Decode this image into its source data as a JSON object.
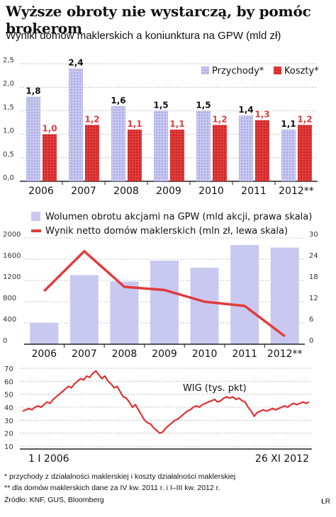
{
  "title": "Wyższe obroty nie wystarczą, by pomóc brokerom",
  "subtitle": "Wyniki domów maklerskich a koniunktura na GPW (mld zł)",
  "colors": {
    "lavender": "#c8c8f0",
    "lavender_dark": "#a6a6e4",
    "red": "#e03c3c",
    "red_dark": "#c81e1e",
    "wig_line": "#e03030",
    "grid": "#b0b0b0"
  },
  "chart_data": [
    {
      "type": "bar",
      "categories": [
        "2006",
        "2007",
        "2008",
        "2009",
        "2010",
        "2011",
        "2012**"
      ],
      "series": [
        {
          "name": "Przychody*",
          "values": [
            1.8,
            2.4,
            1.6,
            1.5,
            1.5,
            1.4,
            1.1
          ],
          "labels": [
            "1,8",
            "2,4",
            "1,6",
            "1,5",
            "1,5",
            "1,4",
            "1,1"
          ]
        },
        {
          "name": "Koszty*",
          "values": [
            1.0,
            1.2,
            1.1,
            1.1,
            1.2,
            1.3,
            1.2
          ],
          "labels": [
            "1,0",
            "1,2",
            "1,1",
            "1,1",
            "1,2",
            "1,3",
            "1,2"
          ]
        }
      ],
      "yticks": [
        "0,0",
        "0,5",
        "1,0",
        "1,5",
        "2,0",
        "2,5"
      ],
      "ylim": [
        0,
        2.5
      ],
      "grid": true,
      "legend": "top-right"
    },
    {
      "type": "bar+line",
      "categories": [
        "2006",
        "2007",
        "2008",
        "2009",
        "2010",
        "2011",
        "2012**"
      ],
      "series": [
        {
          "name": "Wolumen obrotu akcjami na GPW (mld akcji, prawa skala)",
          "axis": "right",
          "values": [
            6.0,
            19.5,
            17.7,
            23.6,
            21.6,
            28.0,
            27.3
          ]
        },
        {
          "name": "Wynik netto domów maklerskich (mln zł, lewa skala)",
          "axis": "left",
          "values": [
            1000,
            1750,
            1080,
            1020,
            800,
            720,
            150
          ]
        }
      ],
      "yticks_left": [
        "0",
        "400",
        "800",
        "1200",
        "1600",
        "2000"
      ],
      "ylim_left": [
        0,
        2000
      ],
      "yticks_right": [
        "0",
        "6",
        "12",
        "18",
        "24",
        "30"
      ],
      "ylim_right": [
        0,
        30
      ],
      "grid": true,
      "legend": "top"
    },
    {
      "type": "line",
      "series_label": "WIG (tys. pkt)",
      "x_start": "1 I 2006",
      "x_end": "26 XI 2012",
      "yticks": [
        "10",
        "20",
        "30",
        "40",
        "50",
        "60",
        "70"
      ],
      "ylim": [
        10,
        70
      ],
      "values": [
        37,
        38,
        39,
        38,
        40,
        41,
        40,
        42,
        44,
        43,
        46,
        48,
        50,
        52,
        54,
        56,
        55,
        58,
        60,
        62,
        61,
        64,
        63,
        66,
        68,
        65,
        62,
        64,
        60,
        58,
        55,
        56,
        52,
        48,
        47,
        44,
        40,
        42,
        38,
        34,
        30,
        28,
        27,
        24,
        22,
        20,
        21,
        24,
        26,
        28,
        30,
        31,
        33,
        35,
        37,
        38,
        40,
        41,
        40,
        42,
        43,
        44,
        45,
        46,
        44,
        45,
        47,
        48,
        47,
        48,
        46,
        47,
        45,
        44,
        40,
        37,
        33,
        36,
        37,
        38,
        37,
        38,
        39,
        38,
        39,
        40,
        41,
        40,
        42,
        43,
        42,
        43,
        44,
        43,
        44
      ]
    }
  ],
  "footnotes": {
    "line1": "* przychody z działalności maklerskiej i koszty działalności maklerskiej",
    "line2": "** dla domów maklerskich dane za IV kw. 2011 r. i I–III kw. 2012 r.",
    "source": "Źródło: KNF, GUS, Bloomberg",
    "credit": "ŁR"
  }
}
